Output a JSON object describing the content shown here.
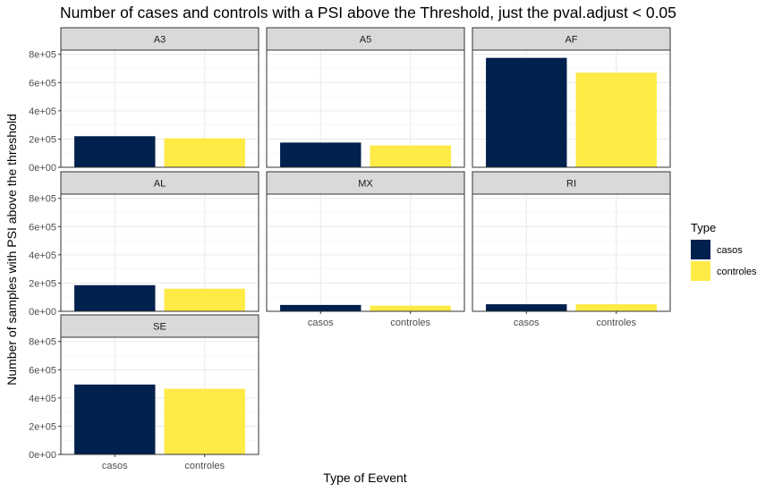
{
  "chart_data": {
    "type": "bar",
    "title": "Number of cases and controls with a PSI above the Threshold, just the pval.adjust < 0.05",
    "xlabel": "Type of Eevent",
    "ylabel": "Number of samples with PSI above the threshold",
    "categories": [
      "casos",
      "controles"
    ],
    "y_ticks": [
      0,
      200000,
      400000,
      600000,
      800000
    ],
    "y_tick_labels": [
      "0e+00",
      "2e+05",
      "4e+05",
      "6e+05",
      "8e+05"
    ],
    "ylim": [
      0,
      830000
    ],
    "grid": true,
    "facets": [
      {
        "name": "A3",
        "values": [
          220000,
          205000
        ]
      },
      {
        "name": "A5",
        "values": [
          175000,
          155000
        ]
      },
      {
        "name": "AF",
        "values": [
          775000,
          670000
        ]
      },
      {
        "name": "AL",
        "values": [
          185000,
          160000
        ]
      },
      {
        "name": "MX",
        "values": [
          45000,
          40000
        ]
      },
      {
        "name": "RI",
        "values": [
          50000,
          50000
        ]
      },
      {
        "name": "SE",
        "values": [
          495000,
          465000
        ]
      }
    ],
    "legend": {
      "title": "Type",
      "position": "right",
      "entries": [
        {
          "label": "casos",
          "color": "#00204d"
        },
        {
          "label": "controles",
          "color": "#ffea46"
        }
      ]
    }
  }
}
